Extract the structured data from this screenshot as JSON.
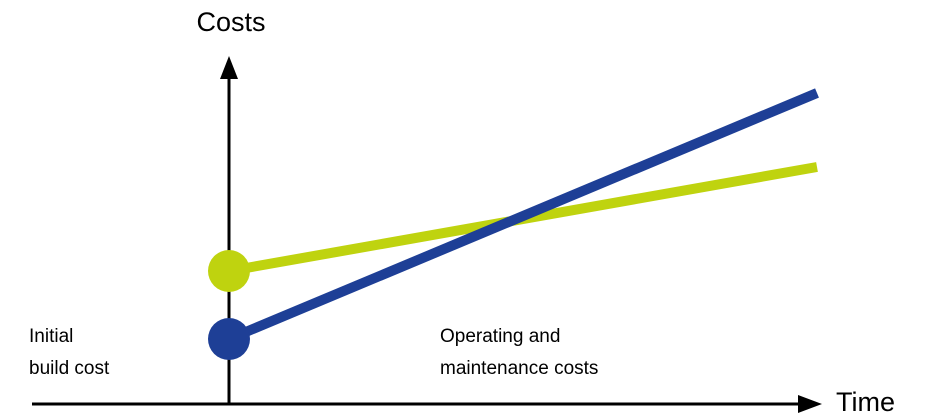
{
  "axes": {
    "y_label": "Costs",
    "x_label": "Time"
  },
  "annotations": {
    "initial_line1": "Initial",
    "initial_line2": "build cost",
    "operating_line1": "Operating and",
    "operating_line2": "maintenance costs"
  },
  "colors": {
    "axis": "#000000",
    "line_green": "#bfd30f",
    "line_blue": "#1e3f96"
  }
}
